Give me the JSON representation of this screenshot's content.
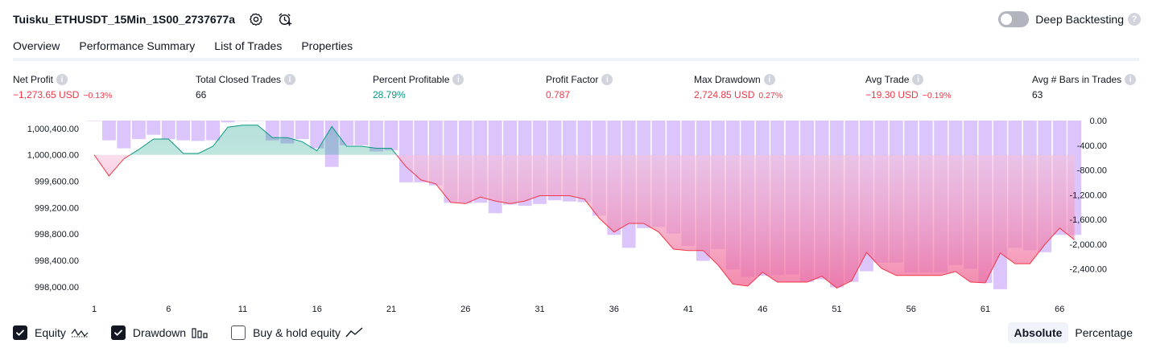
{
  "header": {
    "strategy_name": "Tuisku_ETHUSDT_15Min_1S00_2737677a",
    "settings_icon": "gear-icon",
    "alert_icon": "alarm-clock-plus-icon",
    "deep_backtesting_label": "Deep Backtesting",
    "deep_backtesting_enabled": false,
    "help_glyph": "?"
  },
  "tabs": [
    {
      "label": "Overview",
      "active": true
    },
    {
      "label": "Performance Summary",
      "active": false
    },
    {
      "label": "List of Trades",
      "active": false
    },
    {
      "label": "Properties",
      "active": false
    }
  ],
  "metrics": [
    {
      "title": "Net Profit",
      "value": "−1,273.65 USD",
      "pct": "−0.13%",
      "tone": "neg"
    },
    {
      "title": "Total Closed Trades",
      "value": "66",
      "pct": "",
      "tone": "neutral"
    },
    {
      "title": "Percent Profitable",
      "value": "28.79%",
      "pct": "",
      "tone": "pos"
    },
    {
      "title": "Profit Factor",
      "value": "0.787",
      "pct": "",
      "tone": "neg"
    },
    {
      "title": "Max Drawdown",
      "value": "2,724.85 USD",
      "pct": "0.27%",
      "tone": "neg"
    },
    {
      "title": "Avg Trade",
      "value": "−19.30 USD",
      "pct": "−0.19%",
      "tone": "neg"
    },
    {
      "title": "Avg # Bars in Trades",
      "value": "63",
      "pct": "",
      "tone": "neutral"
    }
  ],
  "info_glyph": "i",
  "legend": {
    "equity_label": "Equity",
    "equity_checked": true,
    "drawdown_label": "Drawdown",
    "drawdown_checked": true,
    "buyhold_label": "Buy & hold equity",
    "buyhold_checked": false
  },
  "mode": {
    "absolute_label": "Absolute",
    "percentage_label": "Percentage",
    "selected": "Absolute"
  },
  "colors": {
    "profit": "#089981",
    "loss": "#f23645",
    "drawdown_bar": "#d9c2fb",
    "text": "#131722"
  },
  "chart_data": {
    "type": "area",
    "x_ticks": [
      "1",
      "6",
      "11",
      "16",
      "21",
      "26",
      "31",
      "36",
      "41",
      "46",
      "51",
      "56",
      "61",
      "66"
    ],
    "y_left_ticks": [
      "1,000,400.00",
      "1,000,000.00",
      "999,600.00",
      "999,200.00",
      "998,800.00",
      "998,400.00",
      "998,000.00"
    ],
    "y_left_range": [
      997900,
      1000520
    ],
    "y_right_ticks": [
      "0.00",
      "-400.00",
      "-800.00",
      "-1,200.00",
      "-1,600.00",
      "-2,000.00",
      "-2,400.00"
    ],
    "y_right_range": [
      -2900,
      0
    ],
    "baseline_equity": 1000000,
    "series": [
      {
        "name": "Equity",
        "x": [
          1,
          2,
          3,
          4,
          5,
          6,
          7,
          8,
          9,
          10,
          11,
          12,
          13,
          14,
          15,
          16,
          17,
          18,
          19,
          20,
          21,
          22,
          23,
          24,
          25,
          26,
          27,
          28,
          29,
          30,
          31,
          32,
          33,
          34,
          35,
          36,
          37,
          38,
          39,
          40,
          41,
          42,
          43,
          44,
          45,
          46,
          47,
          48,
          49,
          50,
          51,
          52,
          53,
          54,
          55,
          56,
          57,
          58,
          59,
          60,
          61,
          62,
          63,
          64,
          65,
          66,
          67
        ],
        "values": [
          1000000,
          999680,
          999940,
          1000080,
          1000240,
          1000240,
          1000020,
          1000020,
          1000130,
          1000420,
          1000450,
          1000450,
          1000260,
          1000260,
          1000200,
          1000060,
          1000430,
          1000130,
          1000130,
          1000100,
          1000100,
          999820,
          999620,
          999560,
          999280,
          999260,
          999360,
          999300,
          999260,
          999300,
          999380,
          999380,
          999380,
          999330,
          999040,
          998830,
          998960,
          998960,
          998830,
          998570,
          998550,
          998550,
          998330,
          998040,
          998010,
          998220,
          998070,
          998070,
          998070,
          998160,
          997980,
          998090,
          998520,
          998280,
          998170,
          998170,
          998170,
          998170,
          998230,
          998070,
          998060,
          998510,
          998350,
          998350,
          998640,
          998890,
          998710
        ]
      },
      {
        "name": "Drawdown",
        "x": [
          1,
          2,
          3,
          4,
          5,
          6,
          7,
          8,
          9,
          10,
          11,
          12,
          13,
          14,
          15,
          16,
          17,
          18,
          19,
          20,
          21,
          22,
          23,
          24,
          25,
          26,
          27,
          28,
          29,
          30,
          31,
          32,
          33,
          34,
          35,
          36,
          37,
          38,
          39,
          40,
          41,
          42,
          43,
          44,
          45,
          46,
          47,
          48,
          49,
          50,
          51,
          52,
          53,
          54,
          55,
          56,
          57,
          58,
          59,
          60,
          61,
          62,
          63,
          64,
          65,
          66,
          67
        ],
        "values": [
          0,
          -320,
          -450,
          -300,
          -230,
          -300,
          -320,
          -330,
          -320,
          -30,
          0,
          0,
          -320,
          -370,
          -300,
          -450,
          -750,
          -400,
          -400,
          -500,
          -480,
          -1000,
          -1000,
          -1050,
          -1330,
          -1340,
          -1330,
          -1500,
          -1360,
          -1380,
          -1350,
          -1290,
          -1310,
          -1320,
          -1540,
          -1850,
          -2060,
          -1740,
          -1720,
          -1830,
          -2030,
          -2270,
          -2080,
          -2410,
          -2530,
          -2510,
          -2500,
          -2490,
          -2610,
          -2570,
          -2700,
          -2610,
          -2440,
          -2300,
          -2300,
          -2460,
          -2460,
          -2460,
          -2340,
          -2400,
          -2630,
          -2730,
          -2060,
          -2100,
          -2130,
          -1850,
          -1850
        ]
      }
    ],
    "grid": false,
    "legend_position": "bottom-left"
  }
}
